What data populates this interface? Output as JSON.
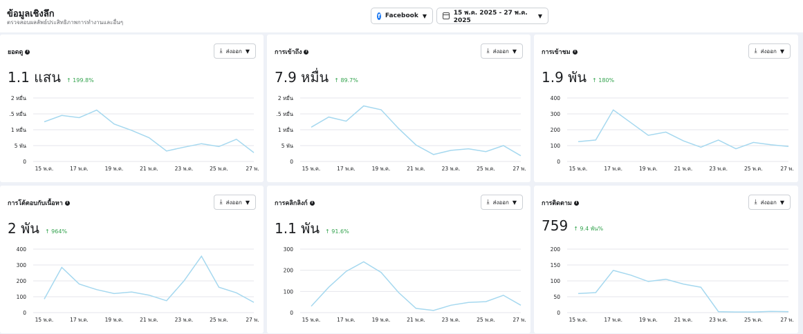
{
  "header": {
    "title": "ข้อมูลเชิงลึก",
    "subtitle": "ตรวจสอบผลลัพธ์ประสิทธิภาพการทำงานและอื่นๆ",
    "platform": "Facebook",
    "date_range": "15 พ.ค. 2025 - 27 พ.ค. 2025"
  },
  "export_label": "ส่งออก",
  "x_labels": [
    "15 พ.ค.",
    "17 พ.ค.",
    "19 พ.ค.",
    "21 พ.ค.",
    "23 พ.ค.",
    "25 พ.ค.",
    "27 พ."
  ],
  "cards": [
    {
      "title": "ยอดดู",
      "value": "1.1 แสน",
      "change": "↑ 199.8%",
      "chart_data": {
        "type": "line",
        "y_ticks": [
          "2 หมื่น",
          ".5 หมื่น",
          "1 หมื่น",
          "5 พัน",
          "0"
        ],
        "ylim": [
          0,
          20000
        ],
        "values": [
          12500,
          14500,
          13800,
          16200,
          11800,
          9800,
          7500,
          3300,
          4500,
          5600,
          4700,
          7000,
          2800
        ]
      }
    },
    {
      "title": "การเข้าถึง",
      "value": "7.9 หมื่น",
      "change": "↑ 89.7%",
      "chart_data": {
        "type": "line",
        "y_ticks": [
          "2 หมื่น",
          ".5 หมื่น",
          "1 หมื่น",
          "5 พัน",
          "0"
        ],
        "ylim": [
          0,
          20000
        ],
        "values": [
          10800,
          14000,
          12700,
          17500,
          16300,
          10400,
          5200,
          2200,
          3500,
          4000,
          3100,
          5000,
          1800
        ]
      }
    },
    {
      "title": "การเข้าชม",
      "value": "1.9 พัน",
      "change": "↑ 180%",
      "chart_data": {
        "type": "line",
        "y_ticks": [
          "400",
          "300",
          "200",
          "100",
          "0"
        ],
        "ylim": [
          0,
          400
        ],
        "values": [
          125,
          135,
          325,
          245,
          165,
          185,
          130,
          90,
          135,
          80,
          120,
          105,
          95
        ]
      }
    },
    {
      "title": "การโต้ตอบกับเนื้อหา",
      "value": "2 พัน",
      "change": "↑ 964%",
      "chart_data": {
        "type": "line",
        "y_ticks": [
          "400",
          "300",
          "200",
          "100",
          "0"
        ],
        "ylim": [
          0,
          400
        ],
        "values": [
          85,
          285,
          180,
          145,
          120,
          130,
          110,
          75,
          200,
          355,
          160,
          125,
          65
        ]
      }
    },
    {
      "title": "การคลิกลิงก์",
      "value": "1.1 พัน",
      "change": "↑ 91.6%",
      "chart_data": {
        "type": "line",
        "y_ticks": [
          "300",
          "200",
          "100",
          "0"
        ],
        "ylim": [
          0,
          300
        ],
        "values": [
          30,
          120,
          195,
          240,
          190,
          95,
          20,
          10,
          35,
          48,
          52,
          82,
          35
        ]
      }
    },
    {
      "title": "การติดตาม",
      "value": "759",
      "change": "↑ 9.4 พัน%",
      "chart_data": {
        "type": "line",
        "y_ticks": [
          "200",
          "150",
          "100",
          "50",
          "0"
        ],
        "ylim": [
          0,
          200
        ],
        "values": [
          60,
          63,
          133,
          118,
          98,
          105,
          90,
          80,
          3,
          2,
          2,
          4,
          3
        ]
      }
    }
  ]
}
